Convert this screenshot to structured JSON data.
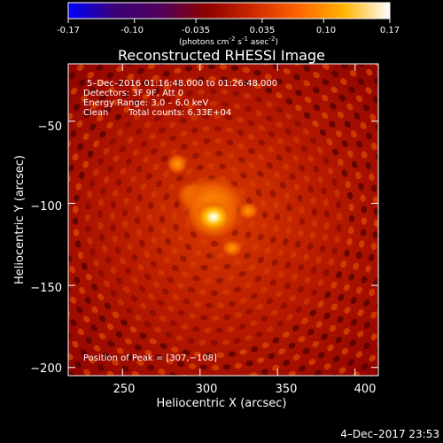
{
  "colorbar": {
    "ticks": [
      "-0.17",
      "-0.10",
      "-0.035",
      "0.035",
      "0.10",
      "0.17"
    ],
    "tick_values": [
      -0.17,
      -0.1,
      -0.035,
      0.035,
      0.1,
      0.17
    ],
    "range": [
      -0.17,
      0.17
    ],
    "units_main": "(photons cm",
    "units_exp1": "-2",
    "units_s": " s",
    "units_exp2": "-1",
    "units_asec": " asec",
    "units_exp3": "-2",
    "units_close": ")",
    "colors": [
      "#0000ff",
      "#3a0078",
      "#50005a",
      "#8c0000",
      "#cc2800",
      "#ff6400",
      "#ffb400",
      "#ffffff"
    ]
  },
  "chart_data": {
    "type": "heatmap",
    "title": "Reconstructed RHESSI Image",
    "xlabel": "Heliocentric X (arcsec)",
    "ylabel": "Heliocentric Y (arcsec)",
    "xlim": [
      215,
      415
    ],
    "ylim": [
      -205,
      -15
    ],
    "xticks": [
      250,
      300,
      350,
      400
    ],
    "yticks": [
      -50,
      -100,
      -150,
      -200
    ],
    "xtick_labels": [
      "250",
      "300",
      "350",
      "400"
    ],
    "ytick_labels": [
      "−50",
      "−100",
      "−150",
      "−200"
    ],
    "peak": [
      307,
      -108
    ],
    "annotations": {
      "time": "5–Dec–2016 01:16:48.000 to 01:26:48.000",
      "detectors": "Detectors: 3F 9F, Att 0",
      "energy": "Energy Range: 3.0 – 6.0 keV",
      "clean_label": "Clean",
      "counts": "Total counts: 6.33E+04",
      "peak_text": "Position of Peak = [307,−108]"
    }
  },
  "footer": {
    "timestamp": "4–Dec–2017 23:53"
  }
}
